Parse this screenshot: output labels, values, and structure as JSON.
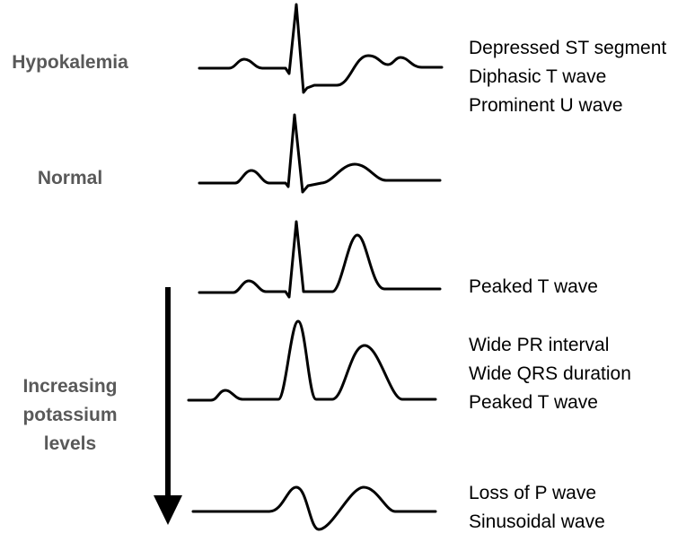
{
  "rows": [
    {
      "label": "Hypokalemia",
      "notes": [
        "Depressed ST segment",
        "Diphasic T wave",
        "Prominent U wave"
      ]
    },
    {
      "label": "Normal"
    },
    {
      "notes": [
        "Peaked T wave"
      ]
    },
    {
      "notes": [
        "Wide PR interval",
        "Wide QRS duration",
        "Peaked T wave"
      ]
    },
    {
      "notes": [
        "Loss of P wave",
        "Sinusoidal wave"
      ]
    }
  ],
  "arrow_label": [
    "Increasing",
    "potassium",
    "levels"
  ]
}
